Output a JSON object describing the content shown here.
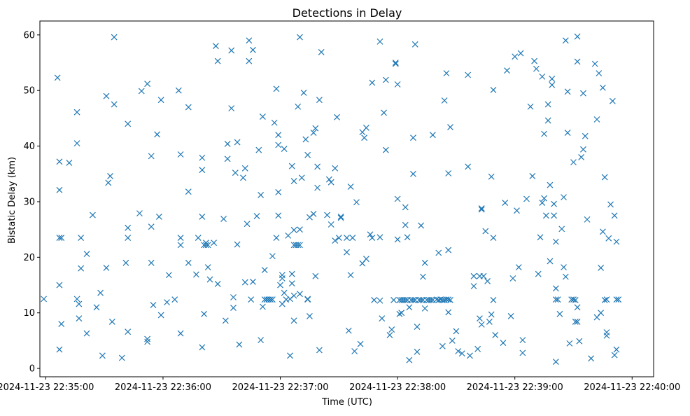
{
  "chart_data": {
    "type": "scatter",
    "title": "Detections in Delay",
    "xlabel": "Time (UTC)",
    "ylabel": "Bistatic Delay (km)",
    "x_ticks": [
      "2024-11-23 22:35:00",
      "2024-11-23 22:36:00",
      "2024-11-23 22:37:00",
      "2024-11-23 22:38:00",
      "2024-11-23 22:39:00",
      "2024-11-23 22:40:00"
    ],
    "x_tick_seconds": [
      0,
      60,
      120,
      180,
      240,
      300
    ],
    "xlim_seconds": [
      -3,
      311
    ],
    "y_ticks": [
      0,
      10,
      20,
      30,
      40,
      50,
      60
    ],
    "ylim": [
      -1.5,
      62.5
    ],
    "grid": false,
    "legend": "none",
    "marker": "x",
    "series_color": "#1f77b4",
    "points_seconds_km": [
      [
        -1,
        12.5
      ],
      [
        6,
        52.3
      ],
      [
        7,
        37.2
      ],
      [
        7,
        32.1
      ],
      [
        7,
        23.5
      ],
      [
        8,
        23.5
      ],
      [
        7,
        15.0
      ],
      [
        8,
        8.0
      ],
      [
        7,
        3.4
      ],
      [
        12,
        37.0
      ],
      [
        16,
        46.1
      ],
      [
        16,
        40.5
      ],
      [
        16,
        12.5
      ],
      [
        17,
        11.6
      ],
      [
        17,
        9.0
      ],
      [
        18,
        23.5
      ],
      [
        18,
        18.0
      ],
      [
        21,
        20.6
      ],
      [
        21,
        6.3
      ],
      [
        24,
        27.6
      ],
      [
        26,
        11.0
      ],
      [
        28,
        13.6
      ],
      [
        29,
        2.3
      ],
      [
        31,
        49.0
      ],
      [
        31,
        18.1
      ],
      [
        32,
        33.4
      ],
      [
        33,
        34.6
      ],
      [
        34,
        8.4
      ],
      [
        35,
        59.6
      ],
      [
        35,
        47.5
      ],
      [
        39,
        1.9
      ],
      [
        41,
        19.0
      ],
      [
        42,
        44.0
      ],
      [
        42,
        25.3
      ],
      [
        42,
        23.5
      ],
      [
        42,
        6.6
      ],
      [
        48,
        27.9
      ],
      [
        49,
        49.9
      ],
      [
        52,
        51.2
      ],
      [
        52,
        5.3
      ],
      [
        52,
        4.8
      ],
      [
        54,
        38.2
      ],
      [
        54,
        25.5
      ],
      [
        54,
        19.0
      ],
      [
        55,
        11.4
      ],
      [
        57,
        42.1
      ],
      [
        58,
        27.3
      ],
      [
        59,
        48.3
      ],
      [
        59,
        9.6
      ],
      [
        62,
        11.9
      ],
      [
        63,
        16.8
      ],
      [
        66,
        12.4
      ],
      [
        68,
        50.0
      ],
      [
        69,
        38.5
      ],
      [
        69,
        23.5
      ],
      [
        69,
        22.2
      ],
      [
        69,
        6.3
      ],
      [
        73,
        47.0
      ],
      [
        73,
        31.8
      ],
      [
        73,
        19.0
      ],
      [
        77,
        16.9
      ],
      [
        78,
        23.5
      ],
      [
        80,
        37.9
      ],
      [
        80,
        35.7
      ],
      [
        80,
        27.3
      ],
      [
        80,
        3.8
      ],
      [
        81,
        22.2
      ],
      [
        81,
        9.8
      ],
      [
        82,
        22.6
      ],
      [
        82,
        22.2
      ],
      [
        83,
        22.2
      ],
      [
        83,
        18.2
      ],
      [
        84,
        16.0
      ],
      [
        86,
        22.6
      ],
      [
        87,
        58.0
      ],
      [
        88,
        55.3
      ],
      [
        88,
        15.2
      ],
      [
        91,
        26.9
      ],
      [
        92,
        8.6
      ],
      [
        93,
        40.4
      ],
      [
        93,
        37.7
      ],
      [
        95,
        57.2
      ],
      [
        95,
        46.8
      ],
      [
        96,
        10.9
      ],
      [
        96,
        12.8
      ],
      [
        97,
        35.2
      ],
      [
        98,
        40.7
      ],
      [
        98,
        22.3
      ],
      [
        99,
        4.3
      ],
      [
        101,
        34.3
      ],
      [
        102,
        15.5
      ],
      [
        102,
        36.0
      ],
      [
        103,
        26.0
      ],
      [
        104,
        59.0
      ],
      [
        104,
        55.3
      ],
      [
        105,
        12.4
      ],
      [
        106,
        57.3
      ],
      [
        106,
        15.6
      ],
      [
        108,
        27.4
      ],
      [
        109,
        39.3
      ],
      [
        110,
        31.2
      ],
      [
        110,
        5.1
      ],
      [
        111,
        45.3
      ],
      [
        111,
        11.1
      ],
      [
        112,
        17.7
      ],
      [
        112,
        12.4
      ],
      [
        113,
        12.4
      ],
      [
        114,
        12.4
      ],
      [
        115,
        12.4
      ],
      [
        116,
        12.4
      ],
      [
        116,
        20.2
      ],
      [
        117,
        44.2
      ],
      [
        118,
        50.3
      ],
      [
        118,
        23.5
      ],
      [
        119,
        31.7
      ],
      [
        119,
        27.5
      ],
      [
        119,
        40.2
      ],
      [
        119,
        42.0
      ],
      [
        120,
        15.0
      ],
      [
        121,
        16.8
      ],
      [
        121,
        16.2
      ],
      [
        121,
        11.6
      ],
      [
        122,
        13.6
      ],
      [
        122,
        39.5
      ],
      [
        123,
        12.4
      ],
      [
        124,
        23.9
      ],
      [
        125,
        12.5
      ],
      [
        125,
        2.3
      ],
      [
        126,
        36.4
      ],
      [
        126,
        17.0
      ],
      [
        126,
        15.3
      ],
      [
        127,
        33.7
      ],
      [
        127,
        13.1
      ],
      [
        127,
        24.9
      ],
      [
        127,
        22.2
      ],
      [
        127,
        8.6
      ],
      [
        128,
        22.2
      ],
      [
        129,
        22.2
      ],
      [
        129,
        47.1
      ],
      [
        130,
        59.6
      ],
      [
        130,
        25.0
      ],
      [
        130,
        22.2
      ],
      [
        130,
        13.4
      ],
      [
        131,
        34.3
      ],
      [
        132,
        49.6
      ],
      [
        133,
        41.2
      ],
      [
        134,
        12.5
      ],
      [
        134,
        12.4
      ],
      [
        134,
        38.4
      ],
      [
        135,
        27.2
      ],
      [
        135,
        9.4
      ],
      [
        137,
        42.4
      ],
      [
        137,
        27.8
      ],
      [
        138,
        43.2
      ],
      [
        138,
        16.6
      ],
      [
        139,
        32.5
      ],
      [
        139,
        36.3
      ],
      [
        140,
        48.3
      ],
      [
        140,
        3.3
      ],
      [
        141,
        56.9
      ],
      [
        144,
        27.6
      ],
      [
        145,
        34.0
      ],
      [
        146,
        33.5
      ],
      [
        146,
        25.9
      ],
      [
        148,
        36.0
      ],
      [
        148,
        23.0
      ],
      [
        149,
        45.2
      ],
      [
        150,
        23.5
      ],
      [
        151,
        27.3
      ],
      [
        151,
        27.1
      ],
      [
        154,
        20.9
      ],
      [
        154,
        23.5
      ],
      [
        155,
        6.8
      ],
      [
        156,
        16.8
      ],
      [
        156,
        32.7
      ],
      [
        157,
        23.5
      ],
      [
        158,
        3.1
      ],
      [
        159,
        29.9
      ],
      [
        161,
        4.4
      ],
      [
        162,
        42.5
      ],
      [
        162,
        18.9
      ],
      [
        163,
        41.5
      ],
      [
        164,
        43.3
      ],
      [
        164,
        19.7
      ],
      [
        166,
        24.1
      ],
      [
        167,
        23.5
      ],
      [
        167,
        51.4
      ],
      [
        168,
        12.3
      ],
      [
        171,
        58.8
      ],
      [
        171,
        23.6
      ],
      [
        171,
        12.2
      ],
      [
        172,
        9.0
      ],
      [
        173,
        46.0
      ],
      [
        174,
        51.9
      ],
      [
        174,
        39.3
      ],
      [
        176,
        6.0
      ],
      [
        177,
        7.0
      ],
      [
        178,
        12.3
      ],
      [
        179,
        55.0
      ],
      [
        179,
        54.8
      ],
      [
        180,
        51.1
      ],
      [
        180,
        30.5
      ],
      [
        180,
        23.2
      ],
      [
        181,
        9.8
      ],
      [
        181,
        12.3
      ],
      [
        182,
        12.3
      ],
      [
        182,
        10.0
      ],
      [
        183,
        12.3
      ],
      [
        184,
        12.3
      ],
      [
        184,
        25.8
      ],
      [
        184,
        29.0
      ],
      [
        185,
        23.6
      ],
      [
        185,
        12.3
      ],
      [
        186,
        11.0
      ],
      [
        186,
        1.5
      ],
      [
        187,
        12.3
      ],
      [
        188,
        12.3
      ],
      [
        188,
        35.0
      ],
      [
        188,
        41.5
      ],
      [
        189,
        12.3
      ],
      [
        189,
        58.3
      ],
      [
        190,
        3.0
      ],
      [
        190,
        7.5
      ],
      [
        191,
        12.3
      ],
      [
        192,
        12.3
      ],
      [
        192,
        25.7
      ],
      [
        193,
        12.3
      ],
      [
        193,
        16.5
      ],
      [
        194,
        10.8
      ],
      [
        194,
        19.0
      ],
      [
        195,
        12.3
      ],
      [
        196,
        12.3
      ],
      [
        197,
        12.3
      ],
      [
        198,
        42.0
      ],
      [
        198,
        12.3
      ],
      [
        200,
        12.4
      ],
      [
        201,
        20.8
      ],
      [
        201,
        12.3
      ],
      [
        202,
        12.4
      ],
      [
        203,
        12.3
      ],
      [
        203,
        4.0
      ],
      [
        204,
        48.2
      ],
      [
        204,
        12.3
      ],
      [
        205,
        12.4
      ],
      [
        205,
        53.1
      ],
      [
        206,
        35.1
      ],
      [
        206,
        21.3
      ],
      [
        206,
        12.4
      ],
      [
        206,
        10.1
      ],
      [
        207,
        43.4
      ],
      [
        207,
        12.3
      ],
      [
        208,
        5.0
      ],
      [
        210,
        6.7
      ],
      [
        211,
        3.1
      ],
      [
        213,
        2.7
      ],
      [
        216,
        52.8
      ],
      [
        216,
        36.3
      ],
      [
        217,
        2.3
      ],
      [
        219,
        14.8
      ],
      [
        219,
        16.6
      ],
      [
        221,
        3.5
      ],
      [
        222,
        9.0
      ],
      [
        222,
        16.6
      ],
      [
        223,
        28.8
      ],
      [
        223,
        28.6
      ],
      [
        223,
        7.9
      ],
      [
        224,
        16.6
      ],
      [
        225,
        24.7
      ],
      [
        226,
        15.7
      ],
      [
        227,
        8.4
      ],
      [
        228,
        9.7
      ],
      [
        228,
        34.5
      ],
      [
        229,
        50.1
      ],
      [
        229,
        23.5
      ],
      [
        229,
        12.3
      ],
      [
        230,
        6.0
      ],
      [
        234,
        4.6
      ],
      [
        235,
        29.8
      ],
      [
        236,
        53.6
      ],
      [
        238,
        9.4
      ],
      [
        239,
        16.2
      ],
      [
        240,
        56.1
      ],
      [
        241,
        28.4
      ],
      [
        242,
        18.2
      ],
      [
        243,
        56.7
      ],
      [
        244,
        5.1
      ],
      [
        244,
        2.8
      ],
      [
        246,
        30.5
      ],
      [
        248,
        47.1
      ],
      [
        249,
        34.6
      ],
      [
        250,
        55.3
      ],
      [
        251,
        53.9
      ],
      [
        252,
        17.0
      ],
      [
        253,
        23.6
      ],
      [
        254,
        52.5
      ],
      [
        254,
        29.8
      ],
      [
        255,
        42.2
      ],
      [
        255,
        30.6
      ],
      [
        256,
        27.5
      ],
      [
        257,
        47.5
      ],
      [
        257,
        44.6
      ],
      [
        258,
        33.0
      ],
      [
        258,
        19.3
      ],
      [
        259,
        52.1
      ],
      [
        259,
        51.0
      ],
      [
        260,
        29.6
      ],
      [
        260,
        27.5
      ],
      [
        261,
        22.8
      ],
      [
        261,
        14.4
      ],
      [
        261,
        12.4
      ],
      [
        261,
        1.2
      ],
      [
        262,
        12.4
      ],
      [
        263,
        9.8
      ],
      [
        264,
        25.1
      ],
      [
        265,
        30.8
      ],
      [
        265,
        18.2
      ],
      [
        266,
        16.5
      ],
      [
        266,
        59.0
      ],
      [
        267,
        49.8
      ],
      [
        267,
        42.4
      ],
      [
        268,
        4.5
      ],
      [
        269,
        12.4
      ],
      [
        270,
        37.1
      ],
      [
        270,
        12.4
      ],
      [
        271,
        12.3
      ],
      [
        271,
        8.4
      ],
      [
        272,
        8.4
      ],
      [
        272,
        59.7
      ],
      [
        272,
        55.2
      ],
      [
        272,
        11.0
      ],
      [
        273,
        4.9
      ],
      [
        274,
        38.0
      ],
      [
        275,
        49.5
      ],
      [
        275,
        39.4
      ],
      [
        276,
        41.8
      ],
      [
        277,
        26.8
      ],
      [
        279,
        1.8
      ],
      [
        281,
        54.8
      ],
      [
        282,
        9.2
      ],
      [
        282,
        44.8
      ],
      [
        283,
        53.1
      ],
      [
        284,
        10.0
      ],
      [
        284,
        18.1
      ],
      [
        285,
        50.5
      ],
      [
        285,
        24.6
      ],
      [
        286,
        12.3
      ],
      [
        286,
        34.4
      ],
      [
        287,
        12.4
      ],
      [
        287,
        6.5
      ],
      [
        287,
        5.9
      ],
      [
        288,
        23.4
      ],
      [
        289,
        29.5
      ],
      [
        290,
        48.1
      ],
      [
        291,
        27.5
      ],
      [
        291,
        2.4
      ],
      [
        292,
        22.8
      ],
      [
        292,
        12.4
      ],
      [
        292,
        3.4
      ],
      [
        293,
        12.4
      ]
    ]
  }
}
